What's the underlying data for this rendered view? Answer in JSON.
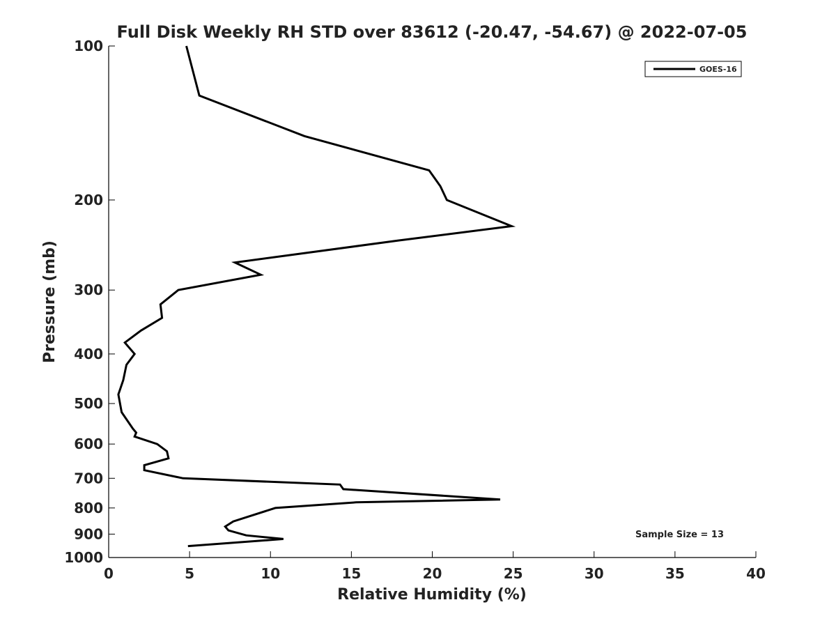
{
  "chart_data": {
    "type": "line",
    "title": "Full Disk Weekly RH STD over 83612 (-20.47, -54.67) @ 2022-07-05",
    "xlabel": "Relative Humidity (%)",
    "ylabel": "Pressure (mb)",
    "xlim": [
      0,
      40
    ],
    "ylim": [
      100,
      1000
    ],
    "y_scale": "log",
    "y_inverted": true,
    "x_ticks": [
      0,
      5,
      10,
      15,
      20,
      25,
      30,
      35,
      40
    ],
    "x_tick_labels": [
      "0",
      "5",
      "10",
      "15",
      "20",
      "25",
      "30",
      "35",
      "40"
    ],
    "y_ticks": [
      100,
      200,
      300,
      400,
      500,
      600,
      700,
      800,
      900,
      1000
    ],
    "y_tick_labels": [
      "100",
      "200",
      "300",
      "400",
      "500",
      "600",
      "700",
      "800",
      "900",
      "1000"
    ],
    "grid": false,
    "legend_position": "top-right",
    "annotation": "Sample Size = 13",
    "series": [
      {
        "name": "GOES-16",
        "color": "#000000",
        "points": [
          {
            "x": 4.8,
            "y": 100
          },
          {
            "x": 5.6,
            "y": 125
          },
          {
            "x": 12.1,
            "y": 150
          },
          {
            "x": 19.8,
            "y": 175
          },
          {
            "x": 20.5,
            "y": 188
          },
          {
            "x": 20.9,
            "y": 200
          },
          {
            "x": 24.9,
            "y": 225
          },
          {
            "x": 17.9,
            "y": 240
          },
          {
            "x": 7.8,
            "y": 265
          },
          {
            "x": 9.4,
            "y": 280
          },
          {
            "x": 4.3,
            "y": 300
          },
          {
            "x": 3.2,
            "y": 320
          },
          {
            "x": 3.3,
            "y": 340
          },
          {
            "x": 2.0,
            "y": 360
          },
          {
            "x": 1.0,
            "y": 380
          },
          {
            "x": 1.6,
            "y": 400
          },
          {
            "x": 1.1,
            "y": 420
          },
          {
            "x": 0.9,
            "y": 450
          },
          {
            "x": 0.6,
            "y": 480
          },
          {
            "x": 0.8,
            "y": 520
          },
          {
            "x": 1.5,
            "y": 560
          },
          {
            "x": 1.7,
            "y": 570
          },
          {
            "x": 1.6,
            "y": 580
          },
          {
            "x": 3.0,
            "y": 600
          },
          {
            "x": 3.6,
            "y": 620
          },
          {
            "x": 3.7,
            "y": 640
          },
          {
            "x": 2.2,
            "y": 660
          },
          {
            "x": 2.2,
            "y": 675
          },
          {
            "x": 4.6,
            "y": 700
          },
          {
            "x": 14.3,
            "y": 720
          },
          {
            "x": 14.5,
            "y": 735
          },
          {
            "x": 24.2,
            "y": 770
          },
          {
            "x": 15.3,
            "y": 780
          },
          {
            "x": 10.3,
            "y": 800
          },
          {
            "x": 7.7,
            "y": 850
          },
          {
            "x": 7.2,
            "y": 870
          },
          {
            "x": 7.4,
            "y": 885
          },
          {
            "x": 8.5,
            "y": 905
          },
          {
            "x": 10.8,
            "y": 920
          },
          {
            "x": 4.9,
            "y": 950
          }
        ]
      }
    ]
  }
}
